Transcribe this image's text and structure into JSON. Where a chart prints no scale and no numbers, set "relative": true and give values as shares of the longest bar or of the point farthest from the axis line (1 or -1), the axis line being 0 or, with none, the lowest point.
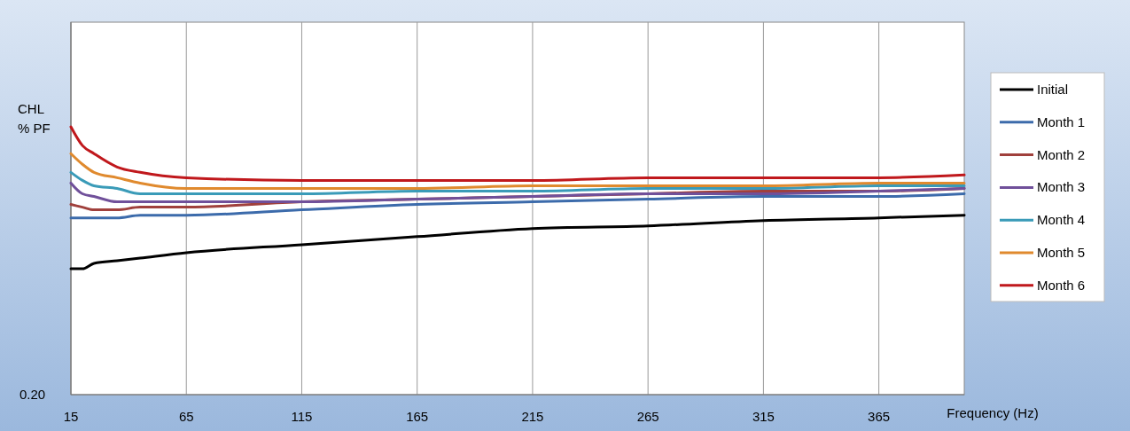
{
  "chart_data": {
    "type": "line",
    "relative": true,
    "xlabel": "Frequency  (Hz)",
    "ylabel": "CHL % PF",
    "annotations": [
      "0.20"
    ],
    "x": [
      15,
      20,
      25,
      35,
      45,
      65,
      115,
      165,
      215,
      265,
      315,
      365,
      402
    ],
    "xlim": [
      15,
      402
    ],
    "xticks": [
      15,
      65,
      115,
      165,
      215,
      265,
      315,
      365
    ],
    "grid": "x",
    "legend": "right",
    "marker": "none",
    "line_style": "solid",
    "series": [
      {
        "name": "Initial",
        "color": "#000000",
        "values": [
          0.47,
          0.47,
          0.49,
          0.5,
          0.51,
          0.53,
          0.56,
          0.59,
          0.62,
          0.63,
          0.65,
          0.66,
          0.67
        ]
      },
      {
        "name": "Month 1",
        "color": "#3c6bab",
        "values": [
          0.66,
          0.66,
          0.66,
          0.66,
          0.67,
          0.67,
          0.69,
          0.71,
          0.72,
          0.73,
          0.74,
          0.74,
          0.75
        ]
      },
      {
        "name": "Month 2",
        "color": "#a0403c",
        "values": [
          0.71,
          0.7,
          0.69,
          0.69,
          0.7,
          0.7,
          0.72,
          0.73,
          0.74,
          0.75,
          0.76,
          0.76,
          0.77
        ]
      },
      {
        "name": "Month 3",
        "color": "#70509a",
        "values": [
          0.79,
          0.75,
          0.74,
          0.72,
          0.72,
          0.72,
          0.72,
          0.73,
          0.74,
          0.75,
          0.75,
          0.76,
          0.77
        ]
      },
      {
        "name": "Month 4",
        "color": "#3a9bb8",
        "values": [
          0.83,
          0.8,
          0.78,
          0.77,
          0.75,
          0.75,
          0.75,
          0.76,
          0.76,
          0.77,
          0.77,
          0.78,
          0.78
        ]
      },
      {
        "name": "Month 5",
        "color": "#e08a2e",
        "values": [
          0.9,
          0.86,
          0.83,
          0.81,
          0.79,
          0.77,
          0.77,
          0.77,
          0.78,
          0.78,
          0.78,
          0.79,
          0.79
        ]
      },
      {
        "name": "Month 6",
        "color": "#c0181c",
        "values": [
          1,
          0.93,
          0.9,
          0.85,
          0.83,
          0.81,
          0.8,
          0.8,
          0.8,
          0.81,
          0.81,
          0.81,
          0.82
        ]
      }
    ]
  }
}
